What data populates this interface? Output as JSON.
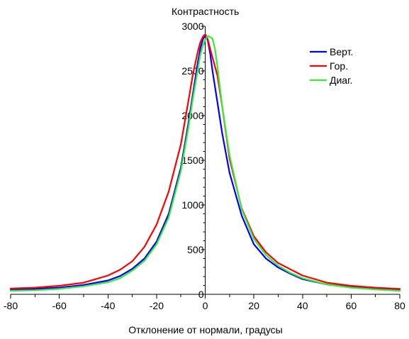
{
  "chart_data": {
    "type": "line",
    "title": "",
    "xlabel": "Отклонение от нормали, градусы",
    "ylabel": "Контрастность",
    "xlim": [
      -80,
      80
    ],
    "ylim": [
      0,
      3000
    ],
    "x_ticks": [
      -80,
      -60,
      -40,
      -20,
      0,
      20,
      40,
      60,
      80
    ],
    "y_ticks": [
      0,
      500,
      1000,
      1500,
      2000,
      2500,
      3000
    ],
    "grid": false,
    "legend_position": "top-right",
    "series": [
      {
        "name": "Верт.",
        "color": "#0000ff",
        "x": [
          -80,
          -70,
          -60,
          -50,
          -40,
          -35,
          -30,
          -25,
          -20,
          -15,
          -10,
          -7,
          -5,
          -3,
          -2,
          -1,
          0,
          1,
          2,
          3,
          5,
          7,
          10,
          15,
          20,
          25,
          30,
          35,
          40,
          50,
          60,
          70,
          80
        ],
        "y": [
          50,
          60,
          75,
          105,
          155,
          205,
          285,
          400,
          590,
          900,
          1420,
          1900,
          2250,
          2600,
          2750,
          2850,
          2900,
          2850,
          2700,
          2500,
          2150,
          1800,
          1360,
          880,
          560,
          400,
          300,
          230,
          170,
          110,
          80,
          60,
          45
        ]
      },
      {
        "name": "Гор.",
        "color": "#ff0000",
        "x": [
          -80,
          -70,
          -60,
          -50,
          -40,
          -35,
          -30,
          -25,
          -20,
          -15,
          -10,
          -7,
          -5,
          -3,
          -2,
          -1,
          0,
          1,
          2,
          3,
          5,
          7,
          10,
          15,
          20,
          25,
          30,
          35,
          40,
          50,
          60,
          70,
          80
        ],
        "y": [
          65,
          75,
          95,
          130,
          210,
          275,
          370,
          530,
          780,
          1150,
          1680,
          2150,
          2470,
          2720,
          2820,
          2880,
          2910,
          2860,
          2750,
          2650,
          2450,
          2100,
          1520,
          960,
          650,
          470,
          350,
          280,
          210,
          130,
          95,
          75,
          60
        ]
      },
      {
        "name": "Диаг.",
        "color": "#33ee33",
        "x": [
          -80,
          -70,
          -60,
          -50,
          -40,
          -35,
          -30,
          -25,
          -20,
          -15,
          -10,
          -7,
          -5,
          -3,
          -2,
          -1,
          0,
          1,
          2,
          3,
          4,
          5,
          7,
          10,
          15,
          20,
          25,
          30,
          35,
          40,
          50,
          60,
          70,
          80
        ],
        "y": [
          40,
          45,
          60,
          90,
          135,
          180,
          265,
          375,
          560,
          860,
          1380,
          1850,
          2200,
          2520,
          2680,
          2780,
          2850,
          2890,
          2880,
          2860,
          2750,
          2550,
          2100,
          1560,
          950,
          620,
          440,
          320,
          240,
          180,
          110,
          75,
          55,
          40
        ]
      }
    ]
  }
}
